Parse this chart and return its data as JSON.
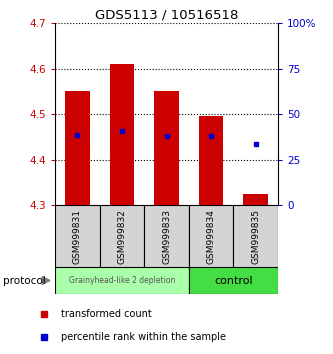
{
  "title": "GDS5113 / 10516518",
  "samples": [
    "GSM999831",
    "GSM999832",
    "GSM999833",
    "GSM999834",
    "GSM999835"
  ],
  "bar_bottoms": [
    4.3,
    4.3,
    4.3,
    4.3,
    4.3
  ],
  "bar_tops": [
    4.55,
    4.61,
    4.55,
    4.495,
    4.325
  ],
  "percentile_values": [
    4.455,
    4.462,
    4.452,
    4.452,
    4.435
  ],
  "ylim": [
    4.3,
    4.7
  ],
  "y2lim": [
    0,
    100
  ],
  "yticks": [
    4.3,
    4.4,
    4.5,
    4.6,
    4.7
  ],
  "y2ticks": [
    0,
    25,
    50,
    75,
    100
  ],
  "bar_color": "#cc0000",
  "dot_color": "#0000cc",
  "group1_color": "#aaffaa",
  "group2_color": "#44dd44",
  "group1_label": "Grainyhead-like 2 depletion",
  "group2_label": "control",
  "ylabel_color": "#cc0000",
  "y2label_color": "#0000cc",
  "legend_red": "transformed count",
  "legend_blue": "percentile rank within the sample",
  "bar_width": 0.55
}
